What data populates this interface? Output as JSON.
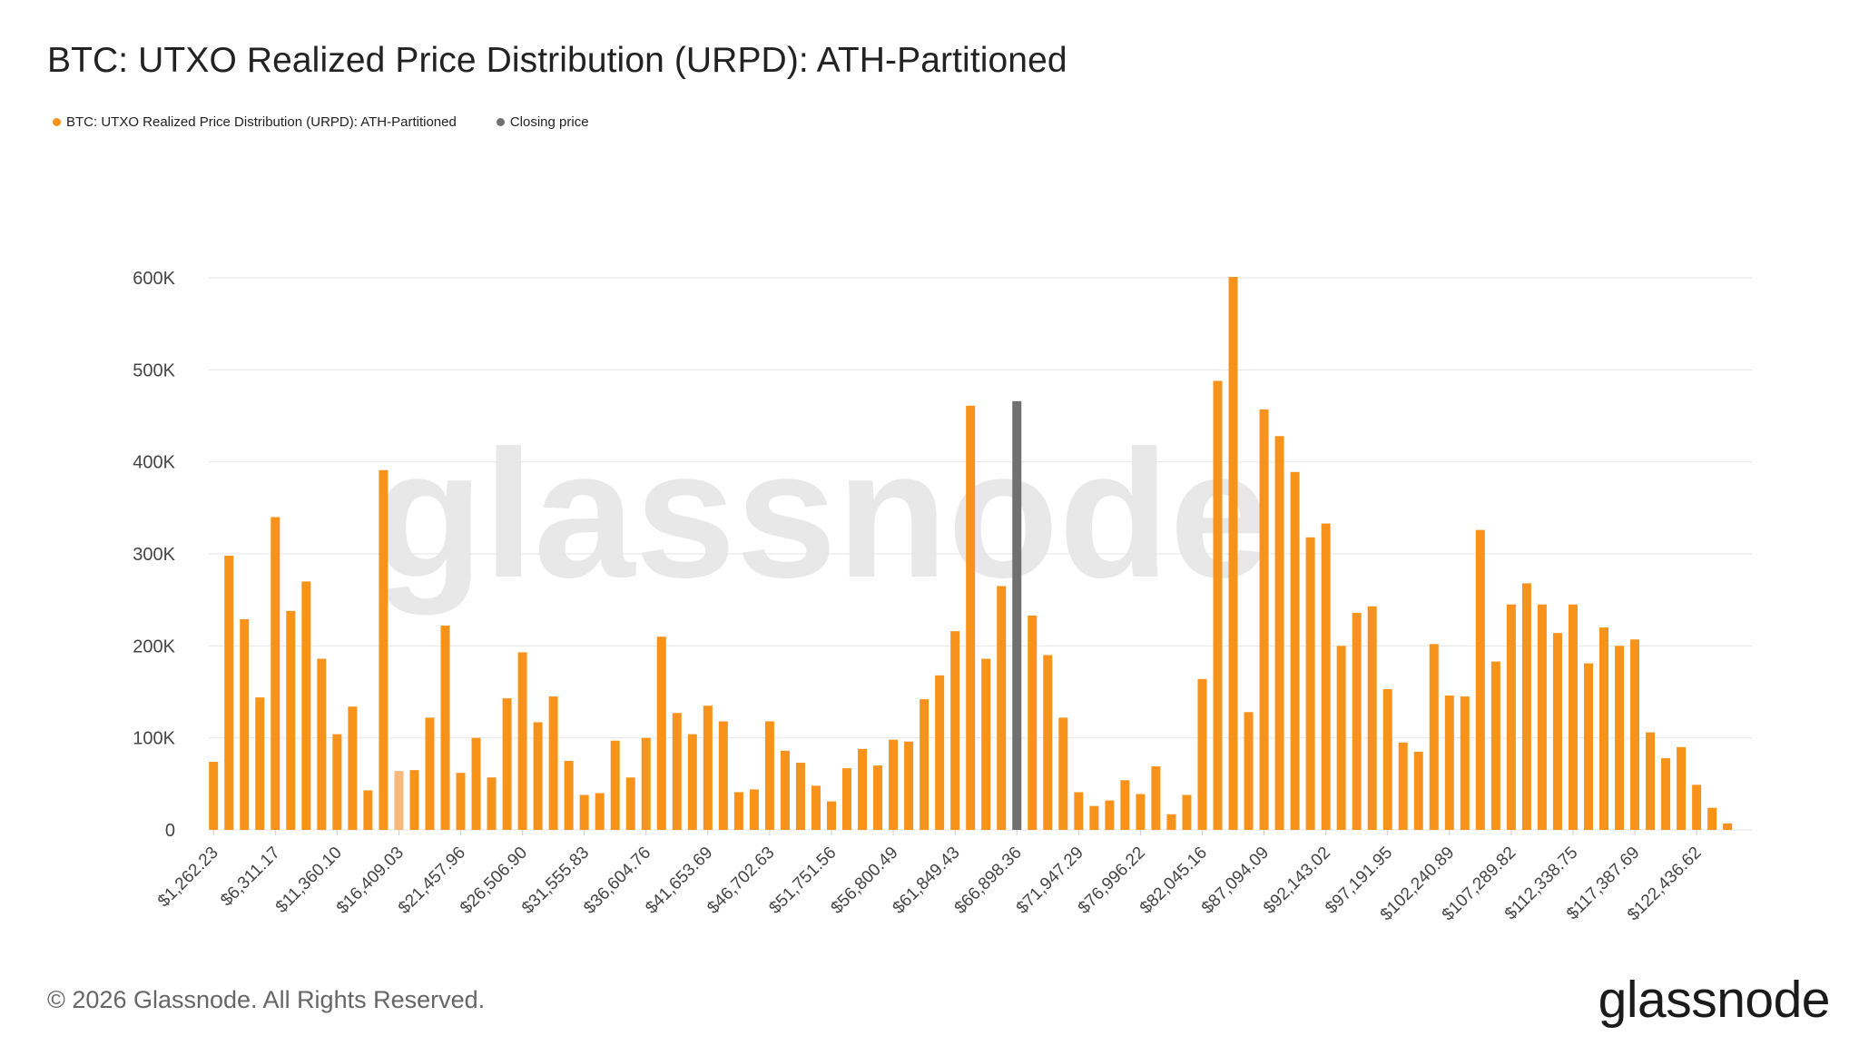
{
  "title": "BTC: UTXO Realized Price Distribution (URPD): ATH-Partitioned",
  "legend": [
    {
      "label": "BTC: UTXO Realized Price Distribution (URPD): ATH-Partitioned",
      "color": "#F7931A"
    },
    {
      "label": "Closing price",
      "color": "#707070"
    }
  ],
  "watermark": "glassnode",
  "footer": "© 2026 Glassnode. All Rights Reserved.",
  "logo": "glassnode",
  "colors": {
    "bar": "#F7931A",
    "bar_light": "#F7B87A",
    "closing": "#707070",
    "grid": "#E6E6E6"
  },
  "chart_data": {
    "type": "bar",
    "title": "BTC: UTXO Realized Price Distribution (URPD): ATH-Partitioned",
    "xlabel": "",
    "ylabel": "",
    "ylim": [
      0,
      600000
    ],
    "yticks": [
      0,
      100000,
      200000,
      300000,
      400000,
      500000,
      600000
    ],
    "ytick_labels": [
      "0",
      "100K",
      "200K",
      "300K",
      "400K",
      "500K",
      "600K"
    ],
    "x_tick_labels": [
      "$1,262.23",
      "$6,311.17",
      "$11,360.10",
      "$16,409.03",
      "$21,457.96",
      "$26,506.90",
      "$31,555.83",
      "$36,604.76",
      "$41,653.69",
      "$46,702.63",
      "$51,751.56",
      "$56,800.49",
      "$61,849.43",
      "$66,898.36",
      "$71,947.29",
      "$76,996.22",
      "$82,045.16",
      "$87,094.09",
      "$92,143.02",
      "$97,191.95",
      "$102,240.89",
      "$107,289.82",
      "$112,338.75",
      "$117,387.69",
      "$122,436.62"
    ],
    "grid": true,
    "legend_position": "top-left",
    "closing_price_bin": 52,
    "light_bin": 12,
    "series": [
      {
        "name": "BTC: UTXO Realized Price Distribution (URPD): ATH-Partitioned",
        "values": [
          74000,
          298000,
          229000,
          144000,
          340000,
          238000,
          270000,
          186000,
          104000,
          134000,
          43000,
          391000,
          64000,
          65000,
          122000,
          222000,
          62000,
          100000,
          57000,
          143000,
          193000,
          117000,
          145000,
          75000,
          38000,
          40000,
          97000,
          57000,
          100000,
          210000,
          127000,
          104000,
          135000,
          118000,
          41000,
          44000,
          118000,
          86000,
          73000,
          48000,
          31000,
          67000,
          88000,
          70000,
          98000,
          96000,
          142000,
          168000,
          216000,
          461000,
          186000,
          265000,
          466000,
          233000,
          190000,
          122000,
          41000,
          26000,
          32000,
          54000,
          39000,
          69000,
          17000,
          38000,
          164000,
          488000,
          601000,
          128000,
          457000,
          428000,
          389000,
          318000,
          333000,
          200000,
          236000,
          243000,
          153000,
          95000,
          85000,
          202000,
          146000,
          145000,
          326000,
          183000,
          245000,
          268000,
          245000,
          214000,
          245000,
          181000,
          220000,
          200000,
          207000,
          106000,
          78000,
          90000,
          49000,
          24000,
          7000
        ]
      }
    ]
  }
}
